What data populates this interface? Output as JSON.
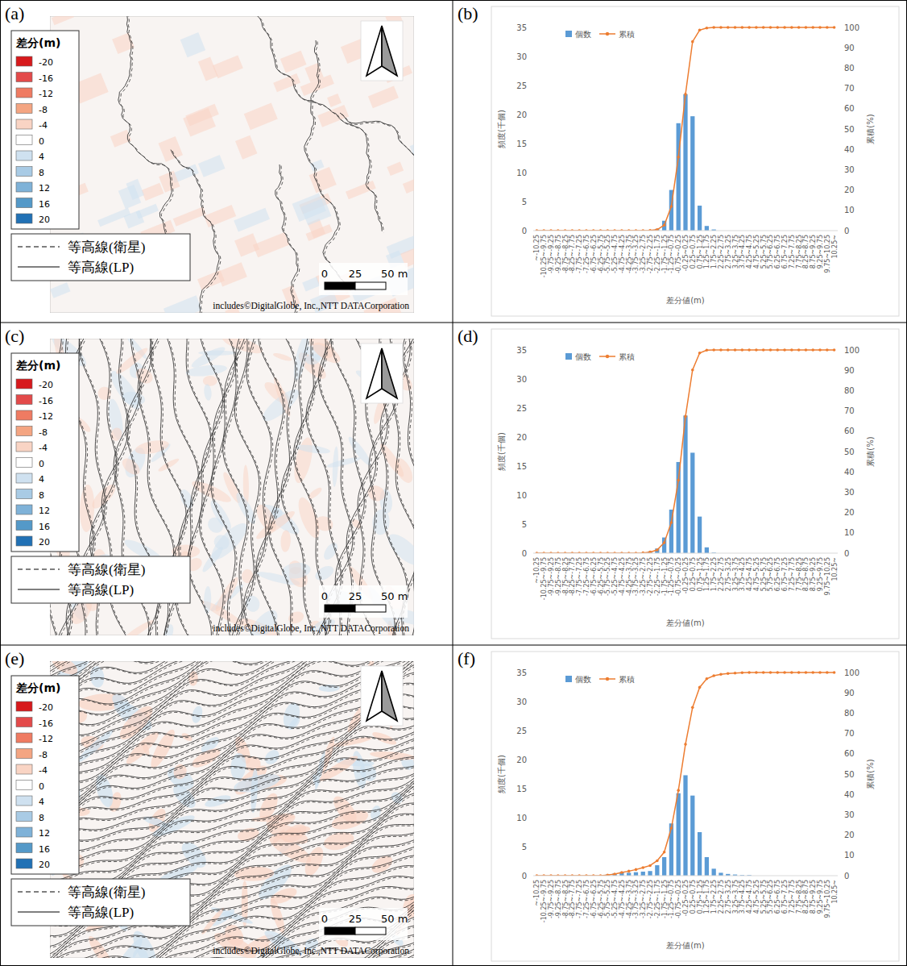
{
  "chart_data": [
    {
      "type": "bar",
      "title": "(b)",
      "x_label": "差分値(m)",
      "y_label": "頻度(千個)",
      "y2_label": "累積(%)",
      "categories": [
        "~-10.25",
        "-10.25~-9.75",
        "-9.75~-9.25",
        "-9.25~-8.75",
        "-8.75~-8.25",
        "-8.25~-7.75",
        "-7.75~-7.25",
        "-7.25~-6.75",
        "-6.75~-6.25",
        "-6.25~-5.75",
        "-5.75~-5.25",
        "-5.25~-4.75",
        "-4.75~-4.25",
        "-4.25~-3.75",
        "-3.75~-3.25",
        "-3.25~-2.75",
        "-2.75~-2.25",
        "-2.25~-1.75",
        "-1.75~-1.25",
        "-1.25~-0.75",
        "-0.75~-0.25",
        "-0.25~0.25",
        "0.25~0.75",
        "0.75~1.25",
        "1.25~1.75",
        "1.75~2.25",
        "2.25~2.75",
        "2.75~3.25",
        "3.25~3.75",
        "3.75~4.25",
        "4.25~4.75",
        "4.75~5.25",
        "5.25~5.75",
        "5.75~6.25",
        "6.25~6.75",
        "6.75~7.25",
        "7.25~7.75",
        "7.75~8.25",
        "8.25~8.75",
        "8.75~9.25",
        "9.25~9.75",
        "9.75~10.25",
        "10.25~"
      ],
      "series": [
        {
          "name": "個数",
          "type": "bar",
          "color": "#5b9bd5",
          "values": [
            0,
            0,
            0,
            0,
            0,
            0,
            0,
            0,
            0,
            0,
            0,
            0,
            0,
            0,
            0,
            0,
            0.05,
            0.3,
            1.7,
            7,
            18.5,
            23.5,
            19.7,
            4.3,
            0.8,
            0.2,
            0,
            0,
            0,
            0,
            0,
            0,
            0,
            0,
            0,
            0,
            0,
            0,
            0,
            0,
            0,
            0,
            0
          ]
        },
        {
          "name": "累積",
          "type": "line",
          "axis": "y2",
          "color": "#ed7d31",
          "marker": "circle",
          "values": [
            0,
            0,
            0,
            0,
            0,
            0,
            0,
            0,
            0,
            0,
            0,
            0,
            0,
            0,
            0,
            0,
            0.07,
            0.46,
            2.7,
            11.9,
            36.2,
            67.1,
            93,
            98.7,
            99.7,
            100,
            100,
            100,
            100,
            100,
            100,
            100,
            100,
            100,
            100,
            100,
            100,
            100,
            100,
            100,
            100,
            100,
            100
          ]
        }
      ],
      "ylim": [
        0,
        35
      ],
      "yticks": [
        0,
        5,
        10,
        15,
        20,
        25,
        30,
        35
      ],
      "y2lim": [
        0,
        100
      ],
      "y2ticks": [
        0,
        10,
        20,
        30,
        40,
        50,
        60,
        70,
        80,
        90,
        100
      ],
      "legend": "top-left",
      "grid": false
    },
    {
      "type": "bar",
      "title": "(d)",
      "x_label": "差分値(m)",
      "y_label": "頻度(千個)",
      "y2_label": "累積(%)",
      "categories": [
        "~-10.25",
        "-10.25~-9.75",
        "-9.75~-9.25",
        "-9.25~-8.75",
        "-8.75~-8.25",
        "-8.25~-7.75",
        "-7.75~-7.25",
        "-7.25~-6.75",
        "-6.75~-6.25",
        "-6.25~-5.75",
        "-5.75~-5.25",
        "-5.25~-4.75",
        "-4.75~-4.25",
        "-4.25~-3.75",
        "-3.75~-3.25",
        "-3.25~-2.75",
        "-2.75~-2.25",
        "-2.25~-1.75",
        "-1.75~-1.25",
        "-1.25~-0.75",
        "-0.75~-0.25",
        "-0.25~0.25",
        "0.25~0.75",
        "0.75~1.25",
        "1.25~1.75",
        "1.75~2.25",
        "2.25~2.75",
        "2.75~3.25",
        "3.25~3.75",
        "3.75~4.25",
        "4.25~4.75",
        "4.75~5.25",
        "5.25~5.75",
        "5.75~6.25",
        "6.25~6.75",
        "6.75~7.25",
        "7.25~7.75",
        "7.75~8.25",
        "8.25~8.75",
        "8.75~9.25",
        "9.25~9.75",
        "9.75~10.25",
        "10.25~"
      ],
      "series": [
        {
          "name": "個数",
          "type": "bar",
          "color": "#5b9bd5",
          "values": [
            0,
            0,
            0,
            0,
            0,
            0,
            0,
            0,
            0,
            0,
            0,
            0,
            0,
            0,
            0,
            0.1,
            0.3,
            0.8,
            2.7,
            7.5,
            15.7,
            23.7,
            17.3,
            6.3,
            1,
            0.1,
            0,
            0,
            0,
            0,
            0,
            0,
            0,
            0,
            0,
            0,
            0,
            0,
            0,
            0,
            0,
            0,
            0
          ]
        },
        {
          "name": "累積",
          "type": "line",
          "axis": "y2",
          "color": "#ed7d31",
          "marker": "circle",
          "values": [
            0,
            0,
            0,
            0,
            0,
            0,
            0,
            0,
            0,
            0,
            0,
            0,
            0,
            0,
            0,
            0.13,
            0.53,
            1.59,
            5.17,
            15.1,
            35.9,
            67.3,
            90.2,
            98.5,
            99.9,
            100,
            100,
            100,
            100,
            100,
            100,
            100,
            100,
            100,
            100,
            100,
            100,
            100,
            100,
            100,
            100,
            100,
            100
          ]
        }
      ],
      "ylim": [
        0,
        35
      ],
      "yticks": [
        0,
        5,
        10,
        15,
        20,
        25,
        30,
        35
      ],
      "y2lim": [
        0,
        100
      ],
      "y2ticks": [
        0,
        10,
        20,
        30,
        40,
        50,
        60,
        70,
        80,
        90,
        100
      ],
      "legend": "top-left",
      "grid": false
    },
    {
      "type": "bar",
      "title": "(f)",
      "x_label": "差分値(m)",
      "y_label": "頻度(千個)",
      "y2_label": "累積(%)",
      "categories": [
        "~-10.25",
        "-10.25~-9.75",
        "-9.75~-9.25",
        "-9.25~-8.75",
        "-8.75~-8.25",
        "-8.25~-7.75",
        "-7.75~-7.25",
        "-7.25~-6.75",
        "-6.75~-6.25",
        "-6.25~-5.75",
        "-5.75~-5.25",
        "-5.25~-4.75",
        "-4.75~-4.25",
        "-4.25~-3.75",
        "-3.75~-3.25",
        "-3.25~-2.75",
        "-2.75~-2.25",
        "-2.25~-1.75",
        "-1.75~-1.25",
        "-1.25~-0.75",
        "-0.75~-0.25",
        "-0.25~0.25",
        "0.25~0.75",
        "0.75~1.25",
        "1.25~1.75",
        "1.75~2.25",
        "2.25~2.75",
        "2.75~3.25",
        "3.25~3.75",
        "3.75~4.25",
        "4.25~4.75",
        "4.75~5.25",
        "5.25~5.75",
        "5.75~6.25",
        "6.25~6.75",
        "6.75~7.25",
        "7.25~7.75",
        "7.75~8.25",
        "8.25~8.75",
        "8.75~9.25",
        "9.25~9.75",
        "9.75~10.25",
        "10.25~"
      ],
      "series": [
        {
          "name": "個数",
          "type": "bar",
          "color": "#5b9bd5",
          "values": [
            0,
            0,
            0,
            0,
            0,
            0,
            0,
            0,
            0,
            0,
            0.2,
            0.4,
            0.6,
            0.5,
            0.6,
            0.7,
            0.8,
            1.8,
            3.2,
            9,
            14.2,
            17.3,
            13.8,
            7.5,
            3.2,
            1.2,
            0.5,
            0.3,
            0.2,
            0.1,
            0.1,
            0,
            0,
            0,
            0,
            0,
            0,
            0,
            0,
            0,
            0,
            0,
            0
          ]
        },
        {
          "name": "累積",
          "type": "line",
          "axis": "y2",
          "color": "#ed7d31",
          "marker": "circle",
          "values": [
            0,
            0,
            0,
            0,
            0,
            0,
            0,
            0,
            0,
            0,
            0.26,
            0.79,
            1.57,
            2.23,
            3.02,
            3.94,
            4.99,
            7.35,
            11.6,
            23.4,
            42,
            64.7,
            82.8,
            92.7,
            96.9,
            98.4,
            99.1,
            99.5,
            99.7,
            99.9,
            100,
            100,
            100,
            100,
            100,
            100,
            100,
            100,
            100,
            100,
            100,
            100,
            100
          ]
        }
      ],
      "ylim": [
        0,
        35
      ],
      "yticks": [
        0,
        5,
        10,
        15,
        20,
        25,
        30,
        35
      ],
      "y2lim": [
        0,
        100
      ],
      "y2ticks": [
        0,
        10,
        20,
        30,
        40,
        50,
        60,
        70,
        80,
        90,
        100
      ],
      "legend": "top-left",
      "grid": false
    }
  ],
  "maps": [
    {
      "letter": "(a)",
      "legend_title": "差分(m)",
      "legend_values": [
        -20,
        -16,
        -12,
        -8,
        -4,
        0,
        4,
        8,
        12,
        16,
        20
      ],
      "colors": [
        "#d7191c",
        "#e34a4a",
        "#ef7b62",
        "#f4a582",
        "#f9d4c4",
        "#ffffff",
        "#cfe1f0",
        "#a9cbe5",
        "#7fb2d8",
        "#5499c8",
        "#2171b5"
      ],
      "line_legend": [
        {
          "label": "等高線(衛星)",
          "line_style": "dashed"
        },
        {
          "label": "等高線(LP)",
          "line_style": "solid"
        }
      ],
      "scale_labels": [
        "0",
        "25",
        "50 m"
      ],
      "credit": "includes©DigitalGlobe, Inc.,NTT DATACorporation"
    },
    {
      "letter": "(c)",
      "legend_title": "差分(m)",
      "legend_values": [
        -20,
        -16,
        -12,
        -8,
        -4,
        0,
        4,
        8,
        12,
        16,
        20
      ],
      "colors": [
        "#d7191c",
        "#e34a4a",
        "#ef7b62",
        "#f4a582",
        "#f9d4c4",
        "#ffffff",
        "#cfe1f0",
        "#a9cbe5",
        "#7fb2d8",
        "#5499c8",
        "#2171b5"
      ],
      "line_legend": [
        {
          "label": "等高線(衛星)",
          "line_style": "dashed"
        },
        {
          "label": "等高線(LP)",
          "line_style": "solid"
        }
      ],
      "scale_labels": [
        "0",
        "25",
        "50 m"
      ],
      "credit": "includes©DigitalGlobe, Inc.,NTT DATACorporation"
    },
    {
      "letter": "(e)",
      "legend_title": "差分(m)",
      "legend_values": [
        -20,
        -16,
        -12,
        -8,
        -4,
        0,
        4,
        8,
        12,
        16,
        20
      ],
      "colors": [
        "#d7191c",
        "#e34a4a",
        "#ef7b62",
        "#f4a582",
        "#f9d4c4",
        "#ffffff",
        "#cfe1f0",
        "#a9cbe5",
        "#7fb2d8",
        "#5499c8",
        "#2171b5"
      ],
      "line_legend": [
        {
          "label": "等高線(衛星)",
          "line_style": "dashed"
        },
        {
          "label": "等高線(LP)",
          "line_style": "solid"
        }
      ],
      "scale_labels": [
        "0",
        "25",
        "50 m"
      ],
      "credit": "includes©DigitalGlobe, Inc.,NTT DATACorporation"
    }
  ]
}
